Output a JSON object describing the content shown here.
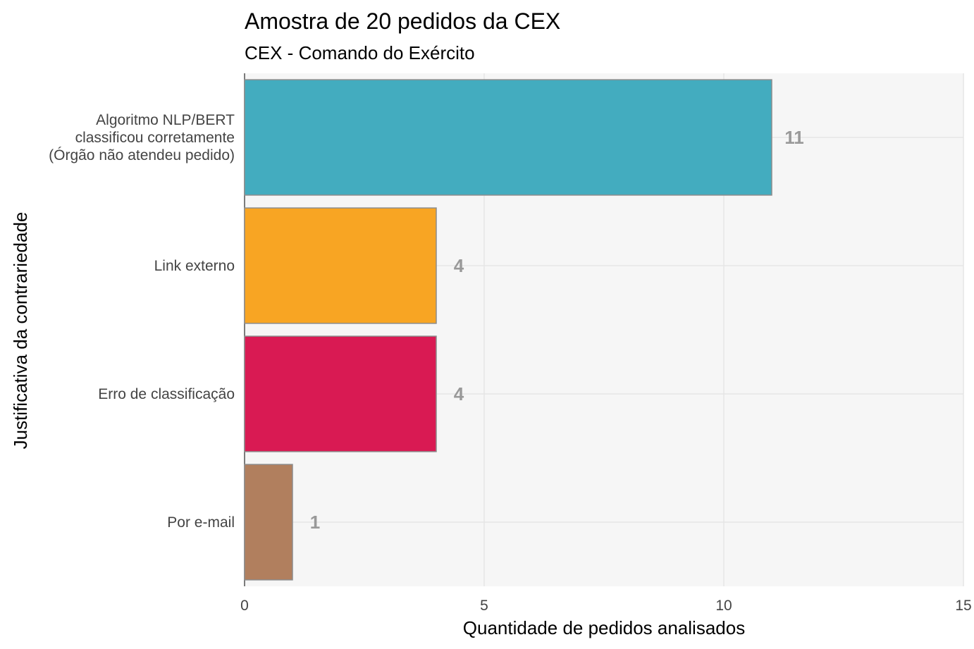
{
  "chart_data": {
    "type": "bar",
    "orientation": "horizontal",
    "title": "Amostra de 20 pedidos da CEX",
    "subtitle": "CEX - Comando do Exército",
    "xlabel": "Quantidade de pedidos analisados",
    "ylabel": "Justificativa da contrariedade",
    "xlim": [
      0,
      15
    ],
    "x_ticks": [
      0,
      5,
      10,
      15
    ],
    "grid": true,
    "legend": "none",
    "categories": [
      {
        "label_lines": [
          "Algoritmo NLP/BERT",
          "classificou corretamente",
          "(Órgão não atendeu pedido)"
        ],
        "value": 11,
        "color": "#43ACBF"
      },
      {
        "label_lines": [
          "Link externo"
        ],
        "value": 4,
        "color": "#F8A523"
      },
      {
        "label_lines": [
          "Erro de classificação"
        ],
        "value": 4,
        "color": "#D91A53"
      },
      {
        "label_lines": [
          "Por e-mail"
        ],
        "value": 1,
        "color": "#B17F5E"
      }
    ],
    "panel_background": "#F6F6F6",
    "grid_color": "#E6E6E6",
    "bar_outline_color": "#8C8C8C",
    "label_color": "#999999"
  }
}
